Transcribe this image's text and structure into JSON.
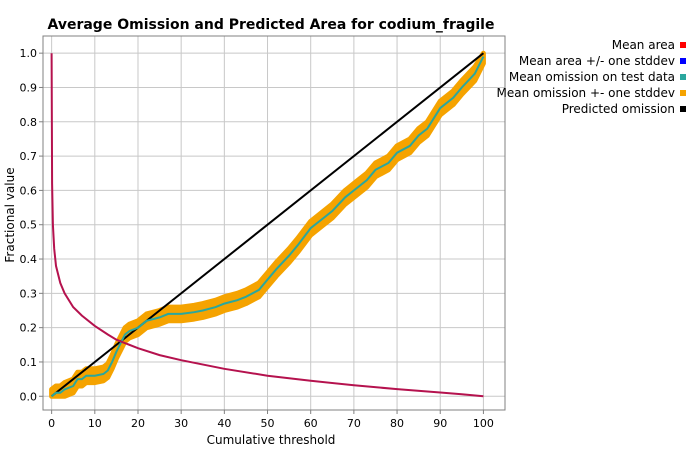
{
  "chart_data": {
    "type": "line",
    "title": "Average Omission and Predicted Area for codium_fragile",
    "xlabel": "Cumulative threshold",
    "ylabel": "Fractional value",
    "xlim": [
      -2,
      105
    ],
    "ylim": [
      -0.04,
      1.05
    ],
    "xticks": [
      0,
      10,
      20,
      30,
      40,
      50,
      60,
      70,
      80,
      90,
      100
    ],
    "yticks": [
      0.0,
      0.1,
      0.2,
      0.3,
      0.4,
      0.5,
      0.6,
      0.7,
      0.8,
      0.9,
      1.0
    ],
    "xtick_labels": [
      "0",
      "10",
      "20",
      "30",
      "40",
      "50",
      "60",
      "70",
      "80",
      "90",
      "100"
    ],
    "ytick_labels": [
      "0.0",
      "0.1",
      "0.2",
      "0.3",
      "0.4",
      "0.5",
      "0.6",
      "0.7",
      "0.8",
      "0.9",
      "1.0"
    ],
    "grid": true,
    "legend_position": "right",
    "legend": [
      {
        "label": "Mean area",
        "color": "#ff0000"
      },
      {
        "label": "Mean area +/- one stddev",
        "color": "#0000ff"
      },
      {
        "label": "Mean omission on test data",
        "color": "#2aa79e"
      },
      {
        "label": "Mean omission +- one stddev",
        "color": "#f5a300"
      },
      {
        "label": "Predicted omission",
        "color": "#000000"
      }
    ],
    "series": [
      {
        "name": "Mean area",
        "color": "#b5124e",
        "x": [
          0,
          0.1,
          0.3,
          0.6,
          1,
          2,
          3,
          5,
          7,
          10,
          13,
          15,
          20,
          25,
          30,
          40,
          50,
          60,
          70,
          80,
          90,
          95,
          100
        ],
        "y": [
          1.0,
          0.62,
          0.5,
          0.43,
          0.38,
          0.33,
          0.3,
          0.26,
          0.235,
          0.205,
          0.18,
          0.165,
          0.14,
          0.12,
          0.105,
          0.08,
          0.06,
          0.045,
          0.032,
          0.021,
          0.011,
          0.006,
          0.0
        ]
      },
      {
        "name": "Mean omission on test data",
        "color": "#2aa79e",
        "x": [
          0,
          1,
          2,
          3,
          5,
          6,
          7,
          8,
          10,
          12,
          13,
          14,
          15,
          16,
          17,
          18,
          20,
          22,
          25,
          27,
          30,
          33,
          35,
          38,
          40,
          43,
          45,
          48,
          50,
          52,
          55,
          57,
          60,
          63,
          65,
          68,
          70,
          73,
          75,
          78,
          80,
          83,
          85,
          87,
          90,
          93,
          95,
          98,
          100
        ],
        "y": [
          0.0,
          0.01,
          0.01,
          0.02,
          0.03,
          0.05,
          0.05,
          0.06,
          0.06,
          0.065,
          0.075,
          0.1,
          0.13,
          0.155,
          0.18,
          0.19,
          0.2,
          0.22,
          0.23,
          0.24,
          0.24,
          0.245,
          0.25,
          0.26,
          0.27,
          0.28,
          0.29,
          0.31,
          0.34,
          0.37,
          0.41,
          0.44,
          0.49,
          0.52,
          0.54,
          0.58,
          0.6,
          0.63,
          0.66,
          0.68,
          0.71,
          0.73,
          0.76,
          0.78,
          0.84,
          0.87,
          0.9,
          0.94,
          0.99
        ]
      },
      {
        "name": "Mean omission +- one stddev",
        "color": "#f5a300",
        "band": 0.02
      },
      {
        "name": "Predicted omission",
        "color": "#000000",
        "x": [
          0,
          100
        ],
        "y": [
          0,
          1
        ]
      }
    ]
  }
}
